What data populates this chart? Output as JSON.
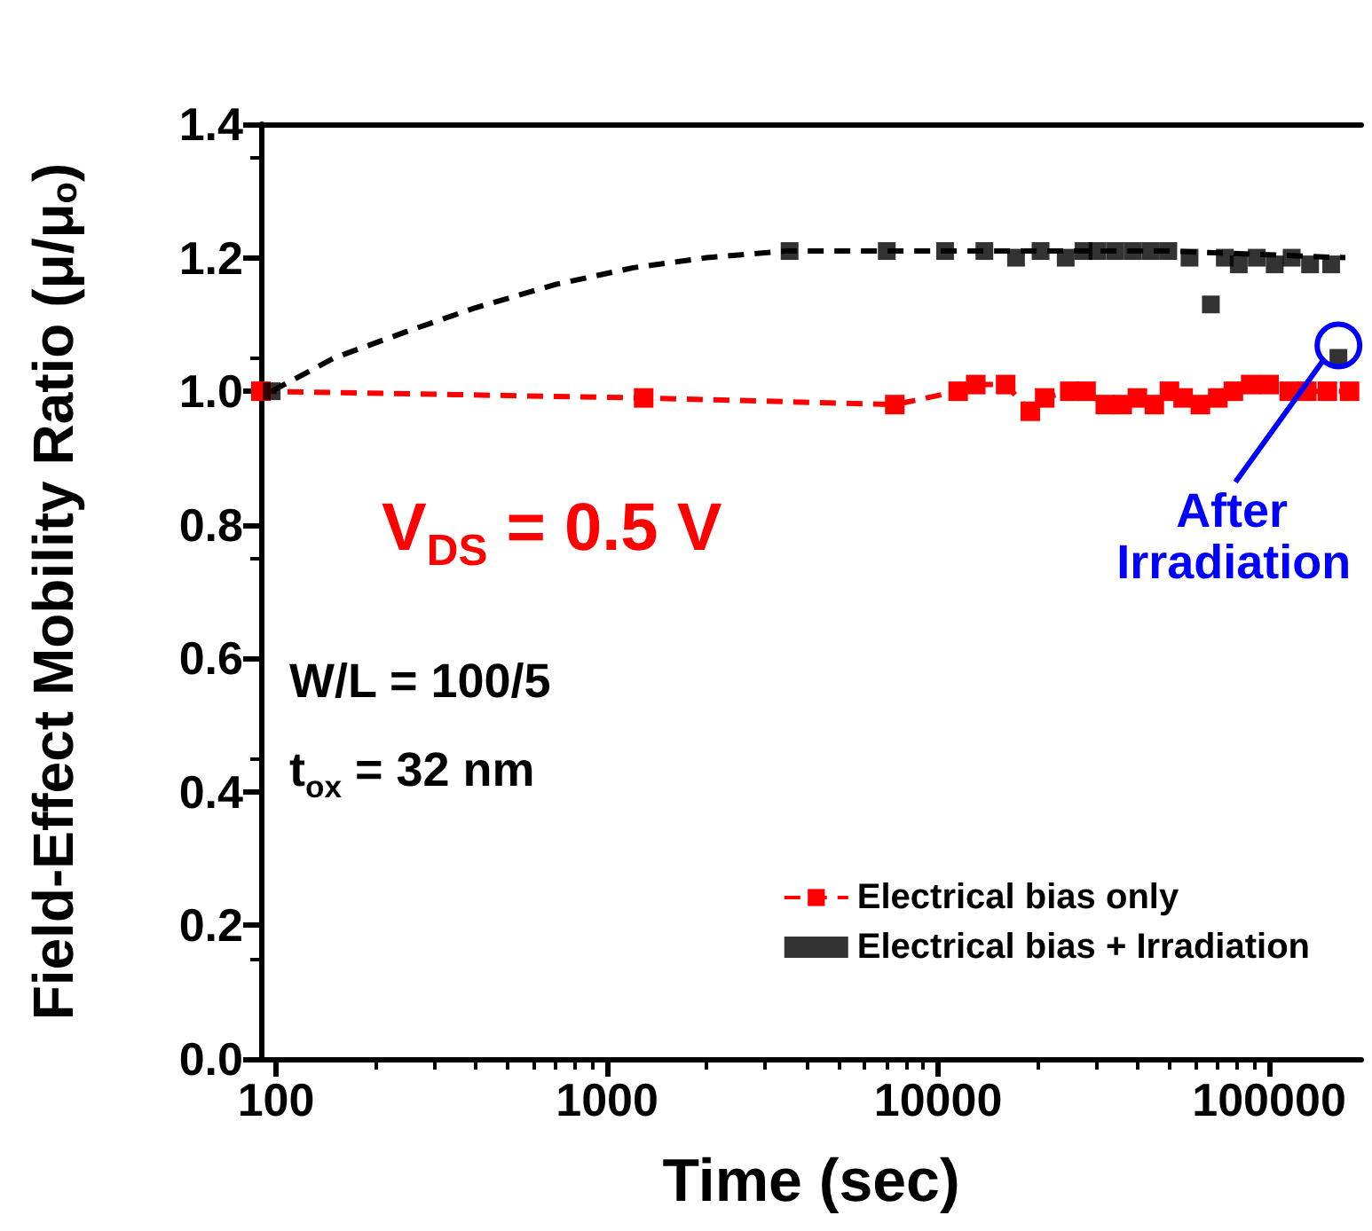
{
  "chart_data": {
    "type": "scatter",
    "xlabel": "Time (sec)",
    "ylabel": "Field-Effect Mobility Ratio (μ/μ$_{o}$)",
    "log": "x",
    "xlim": [
      90,
      190000
    ],
    "xticks": [
      100,
      1000,
      10000,
      100000
    ],
    "ylim": [
      0,
      1.4
    ],
    "yticks": [
      {
        "value": 0,
        "label": "0.0"
      },
      0.2,
      0.4,
      0.6,
      0.8,
      {
        "value": 1,
        "label": "1.0"
      },
      1.2,
      1.4
    ],
    "grid": false,
    "legend": "bottom right",
    "marker": "square",
    "series": [
      {
        "name": "Electrical bias only",
        "type": "line",
        "line_style": "dashed",
        "color": "#ff0000",
        "x": [
          90,
          1290,
          7400,
          11500,
          13000,
          16000,
          19000,
          21000,
          25000,
          28000,
          32000,
          36000,
          40000,
          45000,
          50000,
          55000,
          62000,
          70000,
          78000,
          88000,
          100000,
          115000,
          130000,
          150000,
          175000
        ],
        "values": [
          1.0,
          0.99,
          0.98,
          1.0,
          1.01,
          1.01,
          0.97,
          0.99,
          1.0,
          1.0,
          0.98,
          0.98,
          0.99,
          0.98,
          1.0,
          0.99,
          0.98,
          0.99,
          1.0,
          1.01,
          1.01,
          1.0,
          1.0,
          1.0,
          1.0
        ]
      },
      {
        "name": "Electrical bias + Irradiation",
        "color": "#000000",
        "x": [
          97,
          3560,
          7000,
          10500,
          13800,
          17200,
          20400,
          24300,
          27500,
          30300,
          34300,
          38800,
          43900,
          49600,
          57500,
          66700,
          73500,
          81000,
          91800,
          104000,
          117000,
          133000,
          154000,
          162000
        ],
        "values": [
          1.0,
          1.21,
          1.21,
          1.21,
          1.21,
          1.2,
          1.21,
          1.2,
          1.21,
          1.21,
          1.21,
          1.21,
          1.21,
          1.21,
          1.2,
          1.13,
          1.2,
          1.19,
          1.2,
          1.19,
          1.2,
          1.19,
          1.19,
          1.05
        ]
      },
      {
        "type": "line",
        "line_style": "dashed",
        "marker": "none",
        "color": "#000000",
        "x": [
          97,
          150,
          250,
          400,
          700,
          1200,
          2000,
          3500,
          10000,
          50000,
          170000
        ],
        "values": [
          1.0,
          1.05,
          1.09,
          1.125,
          1.16,
          1.185,
          1.2,
          1.21,
          1.21,
          1.21,
          1.2
        ]
      }
    ],
    "annotations": [
      "V$_{DS}$ = 0.5 V",
      "W/L = 100/5",
      "t$_{ox}$ = 32 nm",
      {
        "text": "After Irradiation",
        "x": 162000,
        "y": 1.05
      }
    ]
  }
}
